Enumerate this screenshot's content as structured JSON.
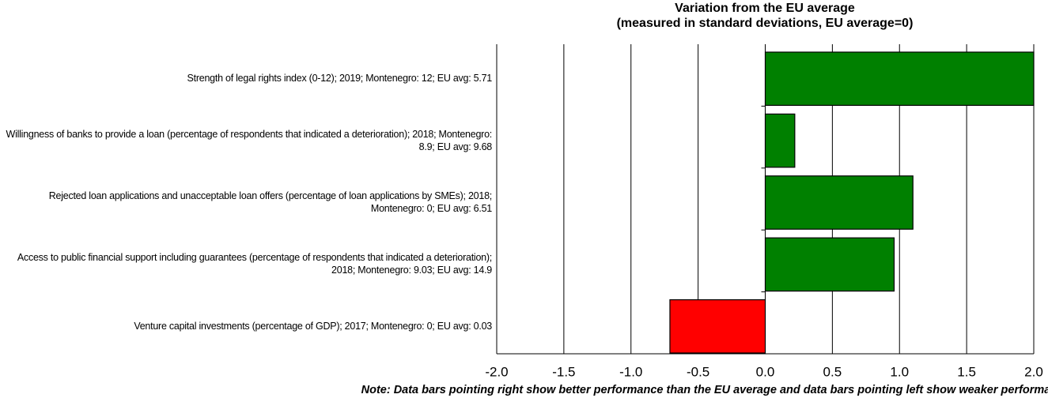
{
  "chart_data": {
    "type": "barh",
    "title": "Variation from the EU average",
    "subtitle": "(measured in standard deviations, EU average=0)",
    "categories": [
      "Strength of legal rights index (0-12); 2019; Montenegro: 12; EU avg: 5.71",
      "Willingness of banks to provide a loan (percentage of respondents that indicated a deterioration); 2018; Montenegro: 8.9; EU avg: 9.68",
      "Rejected loan applications and unacceptable loan offers (percentage of loan applications by SMEs); 2018; Montenegro: 0; EU avg: 6.51",
      "Access to public financial support including guarantees (percentage of respondents that indicated a deterioration); 2018; Montenegro: 9.03; EU avg: 14.9",
      "Venture capital investments (percentage of GDP); 2017; Montenegro: 0; EU avg: 0.03"
    ],
    "values": [
      2.0,
      0.22,
      1.1,
      0.96,
      -0.71
    ],
    "colors": [
      "#008000",
      "#008000",
      "#008000",
      "#008000",
      "#ff0000"
    ],
    "xlim": [
      -2,
      2
    ],
    "xticks": [
      {
        "value": -2,
        "label": "-2.0"
      },
      {
        "value": -1.5,
        "label": "-1.5"
      },
      {
        "value": -1,
        "label": "-1.0"
      },
      {
        "value": -0.5,
        "label": "-0.5"
      },
      {
        "value": 0,
        "label": "0.0"
      },
      0.5,
      {
        "value": 1,
        "label": "1.0"
      },
      1.5,
      {
        "value": 2,
        "label": "2.0"
      }
    ],
    "grid": true,
    "note": "Note: Data bars pointing right show better performance than the EU average and data bars pointing left show weaker performance."
  }
}
